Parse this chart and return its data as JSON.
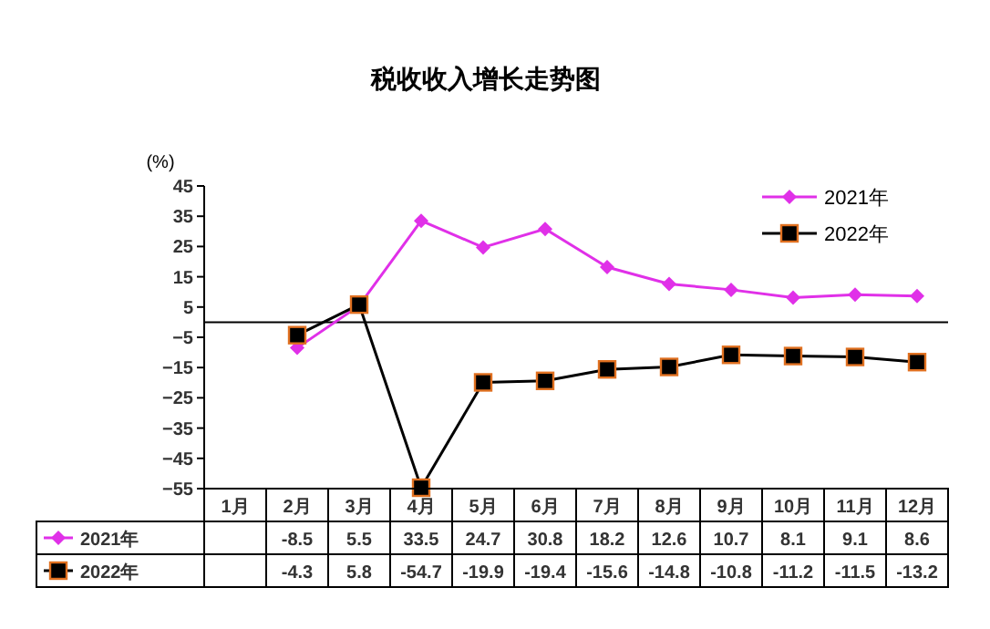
{
  "chart_data": {
    "type": "line",
    "title": "税收收入增长走势图",
    "ylabel": "(%)",
    "categories": [
      "1月",
      "2月",
      "3月",
      "4月",
      "5月",
      "6月",
      "7月",
      "8月",
      "9月",
      "10月",
      "11月",
      "12月"
    ],
    "series": [
      {
        "name": "2021年",
        "color": "#e030e8",
        "marker": "diamond",
        "values": [
          null,
          -8.5,
          5.5,
          33.5,
          24.7,
          30.8,
          18.2,
          12.6,
          10.7,
          8.1,
          9.1,
          8.6
        ]
      },
      {
        "name": "2022年",
        "color": "#000000",
        "marker": "square",
        "values": [
          null,
          -4.3,
          5.8,
          -54.7,
          -19.9,
          -19.4,
          -15.6,
          -14.8,
          -10.8,
          -11.2,
          -11.5,
          -13.2
        ]
      }
    ],
    "data_labels": true,
    "ylim": [
      -55,
      45
    ],
    "yticks": [
      45,
      35,
      25,
      15,
      5,
      -5,
      -15,
      -25,
      -35,
      -45,
      -55
    ],
    "grid": false,
    "legend": "top right"
  }
}
